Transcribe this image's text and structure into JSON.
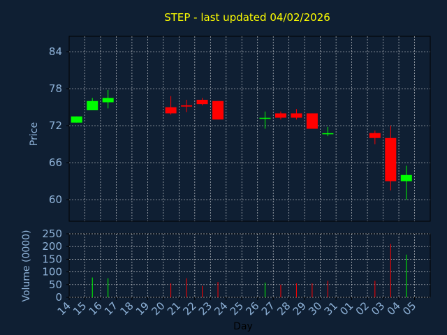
{
  "colors": {
    "background": "#0f1f33",
    "up": "#00ff00",
    "down": "#ff0000",
    "grid": "#ffffff",
    "title": "#ffff00",
    "tick": "#8fb3d9",
    "frame": "#000000"
  },
  "chart_data": [
    {
      "type": "candlestick",
      "title": "STEP - last updated 04/02/2026",
      "ylabel": "Price",
      "ylim": [
        56.5,
        86.5
      ],
      "yticks": [
        "84",
        "78",
        "72",
        "66",
        "60"
      ],
      "grid": true,
      "x_labels": [
        "14",
        "15",
        "16",
        "17",
        "18",
        "19",
        "20",
        "21",
        "22",
        "23",
        "24",
        "25",
        "26",
        "27",
        "28",
        "29",
        "30",
        "31",
        "01",
        "02",
        "03",
        "04",
        "05"
      ],
      "candles": [
        {
          "day": "14",
          "open": 72.5,
          "close": 73.5,
          "high": 73.5,
          "low": 72.5
        },
        {
          "day": "15",
          "open": 74.5,
          "close": 76.0,
          "high": 76.5,
          "low": 74.5
        },
        {
          "day": "16",
          "open": 75.8,
          "close": 76.5,
          "high": 77.8,
          "low": 74.8
        },
        {
          "day": "20",
          "open": 75.0,
          "close": 74.0,
          "high": 76.8,
          "low": 73.8
        },
        {
          "day": "21",
          "open": 75.3,
          "close": 75.1,
          "high": 76.2,
          "low": 74.2
        },
        {
          "day": "22",
          "open": 76.2,
          "close": 75.5,
          "high": 76.5,
          "low": 75.3
        },
        {
          "day": "23",
          "open": 76.0,
          "close": 73.0,
          "high": 76.0,
          "low": 73.0
        },
        {
          "day": "26",
          "open": 73.2,
          "close": 73.2,
          "high": 74.3,
          "low": 71.5
        },
        {
          "day": "27",
          "open": 74.0,
          "close": 73.3,
          "high": 74.3,
          "low": 73.0
        },
        {
          "day": "28",
          "open": 74.0,
          "close": 73.3,
          "high": 74.7,
          "low": 73.0
        },
        {
          "day": "29",
          "open": 74.0,
          "close": 71.5,
          "high": 74.0,
          "low": 71.5
        },
        {
          "day": "30",
          "open": 70.7,
          "close": 70.7,
          "high": 71.8,
          "low": 70.3
        },
        {
          "day": "02",
          "open": 70.8,
          "close": 70.0,
          "high": 71.2,
          "low": 69.0
        },
        {
          "day": "03",
          "open": 70.0,
          "close": 63.0,
          "high": 72.0,
          "low": 61.5
        },
        {
          "day": "04",
          "open": 63.0,
          "close": 64.0,
          "high": 65.5,
          "low": 60.0
        }
      ]
    },
    {
      "type": "bar",
      "ylabel": "Volume (0000)",
      "xlabel": "Day",
      "ylim": [
        0,
        250
      ],
      "yticks": [
        "250",
        "200",
        "150",
        "100",
        "50",
        "0"
      ],
      "grid": true,
      "bars": [
        {
          "day": "15",
          "value": 78,
          "dir": "up"
        },
        {
          "day": "16",
          "value": 75,
          "dir": "up"
        },
        {
          "day": "20",
          "value": 55,
          "dir": "down"
        },
        {
          "day": "21",
          "value": 75,
          "dir": "down"
        },
        {
          "day": "22",
          "value": 45,
          "dir": "down"
        },
        {
          "day": "23",
          "value": 60,
          "dir": "down"
        },
        {
          "day": "26",
          "value": 58,
          "dir": "up"
        },
        {
          "day": "27",
          "value": 50,
          "dir": "down"
        },
        {
          "day": "28",
          "value": 55,
          "dir": "down"
        },
        {
          "day": "29",
          "value": 55,
          "dir": "down"
        },
        {
          "day": "30",
          "value": 65,
          "dir": "down"
        },
        {
          "day": "02",
          "value": 65,
          "dir": "down"
        },
        {
          "day": "03",
          "value": 210,
          "dir": "down"
        },
        {
          "day": "04",
          "value": 168,
          "dir": "up"
        }
      ]
    }
  ]
}
